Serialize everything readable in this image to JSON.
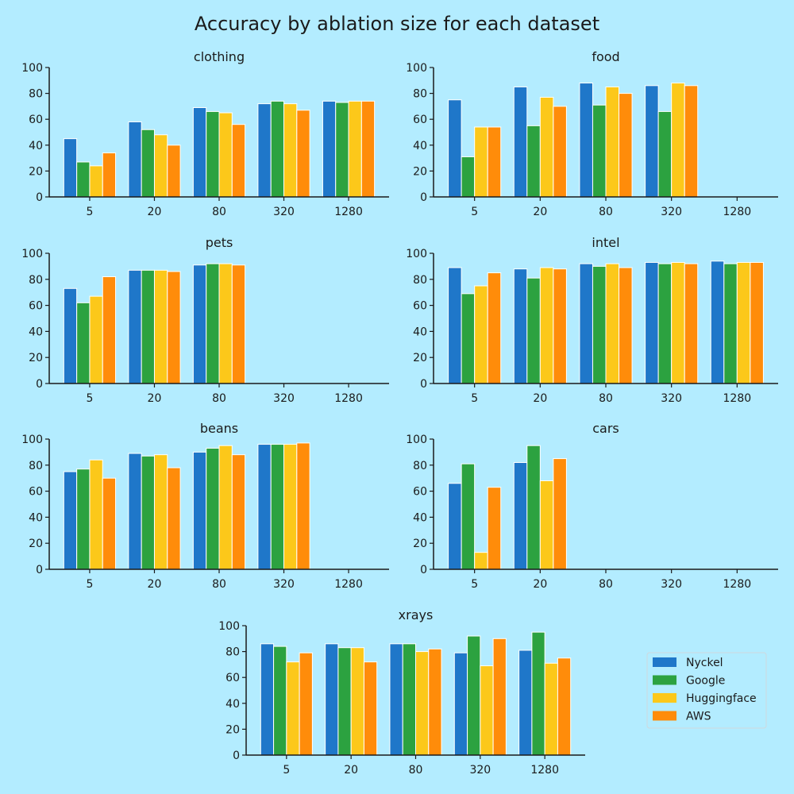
{
  "chart_data": {
    "type": "bar",
    "title": "Accuracy by ablation size for each dataset",
    "categories": [
      "5",
      "20",
      "80",
      "320",
      "1280"
    ],
    "series_names": [
      "Nyckel",
      "Google",
      "Huggingface",
      "AWS"
    ],
    "colors": {
      "Nyckel": "#1f77c9",
      "Google": "#2ca240",
      "Huggingface": "#fcc81a",
      "AWS": "#ff8c0a"
    },
    "ylim": [
      0,
      100
    ],
    "yticks": [
      0,
      20,
      40,
      60,
      80,
      100
    ],
    "grid": false,
    "legend_position": "lower-right",
    "panels": [
      {
        "title": "clothing",
        "series": [
          {
            "name": "Nyckel",
            "values": [
              45,
              58,
              69,
              72,
              74
            ]
          },
          {
            "name": "Google",
            "values": [
              27,
              52,
              66,
              74,
              73
            ]
          },
          {
            "name": "Huggingface",
            "values": [
              24,
              48,
              65,
              72,
              74
            ]
          },
          {
            "name": "AWS",
            "values": [
              34,
              40,
              56,
              67,
              74
            ]
          }
        ]
      },
      {
        "title": "food",
        "series": [
          {
            "name": "Nyckel",
            "values": [
              75,
              85,
              88,
              86,
              null
            ]
          },
          {
            "name": "Google",
            "values": [
              31,
              55,
              71,
              66,
              null
            ]
          },
          {
            "name": "Huggingface",
            "values": [
              54,
              77,
              85,
              88,
              null
            ]
          },
          {
            "name": "AWS",
            "values": [
              54,
              70,
              80,
              86,
              null
            ]
          }
        ]
      },
      {
        "title": "pets",
        "series": [
          {
            "name": "Nyckel",
            "values": [
              73,
              87,
              91,
              null,
              null
            ]
          },
          {
            "name": "Google",
            "values": [
              62,
              87,
              92,
              null,
              null
            ]
          },
          {
            "name": "Huggingface",
            "values": [
              67,
              87,
              92,
              null,
              null
            ]
          },
          {
            "name": "AWS",
            "values": [
              82,
              86,
              91,
              null,
              null
            ]
          }
        ]
      },
      {
        "title": "intel",
        "series": [
          {
            "name": "Nyckel",
            "values": [
              89,
              88,
              92,
              93,
              94
            ]
          },
          {
            "name": "Google",
            "values": [
              69,
              81,
              90,
              92,
              92
            ]
          },
          {
            "name": "Huggingface",
            "values": [
              75,
              89,
              92,
              93,
              93
            ]
          },
          {
            "name": "AWS",
            "values": [
              85,
              88,
              89,
              92,
              93
            ]
          }
        ]
      },
      {
        "title": "beans",
        "series": [
          {
            "name": "Nyckel",
            "values": [
              75,
              89,
              90,
              96,
              null
            ]
          },
          {
            "name": "Google",
            "values": [
              77,
              87,
              93,
              96,
              null
            ]
          },
          {
            "name": "Huggingface",
            "values": [
              84,
              88,
              95,
              96,
              null
            ]
          },
          {
            "name": "AWS",
            "values": [
              70,
              78,
              88,
              97,
              null
            ]
          }
        ]
      },
      {
        "title": "cars",
        "series": [
          {
            "name": "Nyckel",
            "values": [
              66,
              82,
              null,
              null,
              null
            ]
          },
          {
            "name": "Google",
            "values": [
              81,
              95,
              null,
              null,
              null
            ]
          },
          {
            "name": "Huggingface",
            "values": [
              13,
              68,
              null,
              null,
              null
            ]
          },
          {
            "name": "AWS",
            "values": [
              63,
              85,
              null,
              null,
              null
            ]
          }
        ]
      },
      {
        "title": "xrays",
        "series": [
          {
            "name": "Nyckel",
            "values": [
              86,
              86,
              86,
              79,
              81
            ]
          },
          {
            "name": "Google",
            "values": [
              84,
              83,
              86,
              92,
              95
            ]
          },
          {
            "name": "Huggingface",
            "values": [
              72,
              83,
              80,
              69,
              71
            ]
          },
          {
            "name": "AWS",
            "values": [
              79,
              72,
              82,
              90,
              75
            ]
          }
        ]
      }
    ]
  }
}
